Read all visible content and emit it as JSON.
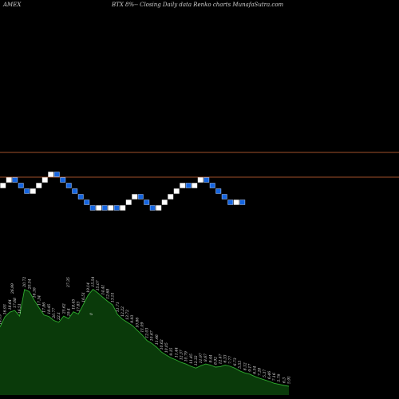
{
  "header": {
    "exchange": "AMEX",
    "description": "BTX  8%-- Closing Daily data  Renko  charts MunafaSutra.com"
  },
  "colors": {
    "background": "#000000",
    "up_brick": "#ffffff",
    "down_brick": "#1565e0",
    "down_brick_border": "#9cc2ff",
    "level_line": "#a0502a",
    "volume_fill": "#0a3a0a",
    "volume_line": "#2fae2f",
    "text": "#d0d0d0"
  },
  "chart_data": [
    {
      "type": "renko",
      "title": "BTX 8%-- Closing Daily data Renko charts",
      "y_direction": [
        1,
        1,
        -1,
        -1,
        -1,
        1,
        1,
        1,
        1,
        -1,
        -1,
        -1,
        -1,
        -1,
        -1,
        -1,
        1,
        -1,
        1,
        -1,
        1,
        1,
        1,
        -1,
        -1,
        -1,
        1,
        1,
        1,
        1,
        1,
        -1,
        1,
        1,
        -1,
        -1,
        -1,
        -1,
        -1,
        1,
        -1
      ],
      "levels": [
        2,
        8
      ],
      "grid": false
    },
    {
      "type": "area",
      "title": "Volume",
      "values": [
        16.39,
        18.81,
        19.97,
        20.38,
        19.02,
        25.44,
        24.94,
        22.85,
        20.98,
        19.26,
        18.93,
        17.97,
        17.51,
        19.02,
        18.4,
        20.06,
        19.51,
        21.77,
        24.06,
        25.49,
        24.57,
        23.56,
        22.58,
        21.72,
        19.4,
        18.28,
        17.51,
        16.77,
        15.63,
        14.52,
        13.16,
        12.47,
        11.52,
        10.34,
        9.59,
        8.92,
        8.45,
        7.87,
        7.46,
        6.92,
        6.48,
        7.05,
        7.48,
        7.22,
        6.73,
        6.85,
        7.21,
        6.92,
        6.46,
        5.81,
        5.32,
        5.03,
        4.48,
        4.06,
        3.68,
        3.27,
        2.82,
        2.58,
        2.3,
        2.12
      ],
      "labels": [
        "14.09",
        "16.93",
        "18.64",
        "17.68",
        "16.51",
        "20.72",
        "20.54",
        "16.16",
        "17.34",
        "17.86",
        "18.45",
        "20.77",
        "22.1",
        "25.62",
        "19.4",
        "18.45",
        "17.83",
        "16.51",
        "19.14",
        "15.54",
        "15.07",
        "14.41",
        "12.68",
        "13.51",
        "11.71",
        "12.22",
        "13.72",
        "9.93",
        "10.86",
        "11.09",
        "12.03",
        "10.67",
        "11.46",
        "10.62",
        "10.05",
        "9.15",
        "11.44",
        "12.37",
        "10.79",
        "11.45",
        "12.32",
        "11.97",
        "8.67",
        "9.44",
        "8.92",
        "12.47",
        "6.33",
        "7.77",
        "6.73",
        "5.55",
        "8.12",
        "9.17",
        "6.54",
        "7.28",
        "5.37",
        "6.46",
        "7.16",
        "5.79",
        "6.3",
        "5.91"
      ],
      "extra_labels": [
        "26.99",
        "27.35",
        "0"
      ],
      "grid": false
    }
  ]
}
